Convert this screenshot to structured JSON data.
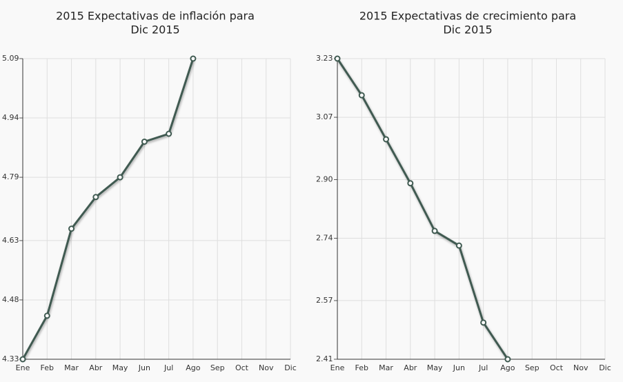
{
  "chart_data": [
    {
      "type": "line",
      "title": [
        "2015 Expectativas de inflación para",
        "Dic 2015"
      ],
      "categories": [
        "Ene",
        "Feb",
        "Mar",
        "Abr",
        "May",
        "Jun",
        "Jul",
        "Ago",
        "Sep",
        "Oct",
        "Nov",
        "Dic"
      ],
      "series": [
        {
          "color": "#3f5a51",
          "values": [
            4.33,
            4.44,
            4.66,
            4.74,
            4.79,
            4.88,
            4.9,
            5.09,
            null,
            null,
            null,
            null
          ]
        }
      ],
      "ylim": [
        4.33,
        5.09
      ],
      "yticks": [
        4.33,
        4.48,
        4.63,
        4.79,
        4.94,
        5.09
      ],
      "grid": true
    },
    {
      "type": "line",
      "title": [
        "2015 Expectativas de crecimiento para",
        "Dic 2015"
      ],
      "categories": [
        "Ene",
        "Feb",
        "Mar",
        "Abr",
        "May",
        "Jun",
        "Jul",
        "Ago",
        "Sep",
        "Oct",
        "Nov",
        "Dic"
      ],
      "series": [
        {
          "color": "#3f5a51",
          "values": [
            3.23,
            3.13,
            3.01,
            2.89,
            2.76,
            2.72,
            2.51,
            2.41,
            null,
            null,
            null,
            null
          ]
        }
      ],
      "ylim": [
        2.41,
        3.23
      ],
      "yticks": [
        2.41,
        {
          "value": 2.57,
          "label": "2.57"
        },
        2.74,
        {
          "value": 2.9,
          "label": "2.90"
        },
        3.07,
        3.23
      ],
      "grid": true
    }
  ]
}
